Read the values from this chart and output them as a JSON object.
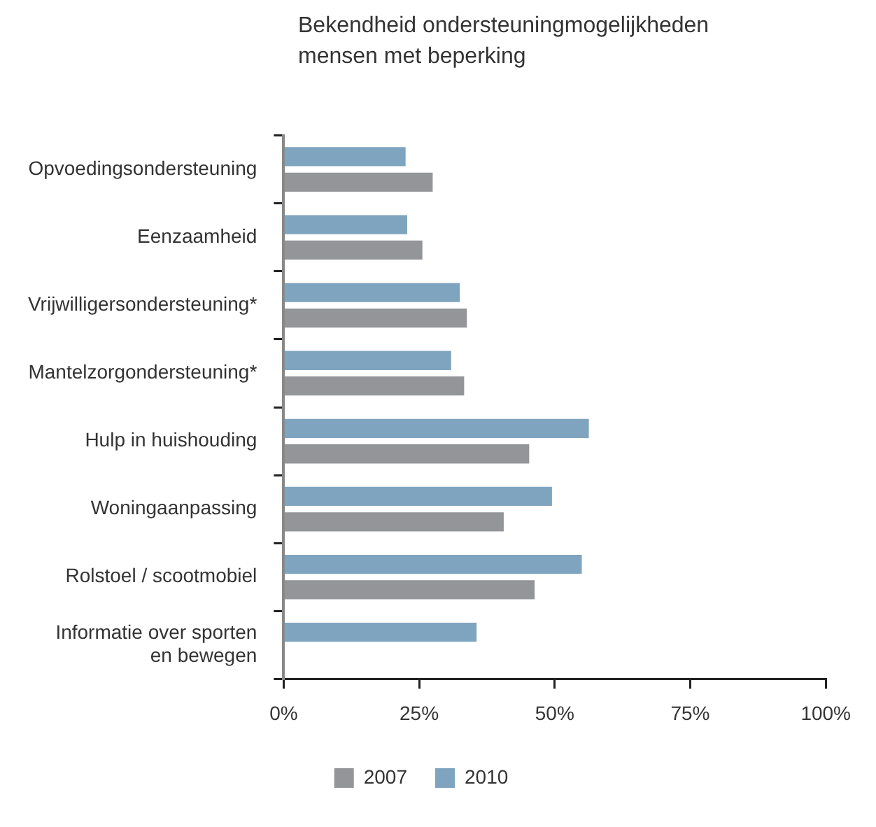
{
  "chart_data": {
    "type": "bar",
    "orientation": "horizontal",
    "title": "Bekendheid ondersteuningmogelijkheden\nmensen met beperking",
    "categories": [
      "Opvoedingsondersteuning",
      "Eenzaamheid",
      "Vrijwilligersondersteuning*",
      "Mantelzorgondersteuning*",
      "Hulp in huishouding",
      "Woningaanpassing",
      "Rolstoel / scootmobiel",
      "Informatie over sporten en bewegen"
    ],
    "series": [
      {
        "name": "2007",
        "color": "#949599",
        "values": [
          27.5,
          25.6,
          33.8,
          33.3,
          45.3,
          40.6,
          46.3,
          null
        ]
      },
      {
        "name": "2010",
        "color": "#7fa4bf",
        "values": [
          22.5,
          22.8,
          32.5,
          30.9,
          56.3,
          49.5,
          55.0,
          35.6
        ]
      }
    ],
    "xlim": [
      0,
      100
    ],
    "xticks": [
      {
        "value": 0,
        "label": "0%"
      },
      {
        "value": 25,
        "label": "25%"
      },
      {
        "value": 50,
        "label": "50%"
      },
      {
        "value": 75,
        "label": "75%"
      },
      {
        "value": 100,
        "label": "100%"
      }
    ],
    "grid": false,
    "legend": "bottom"
  }
}
